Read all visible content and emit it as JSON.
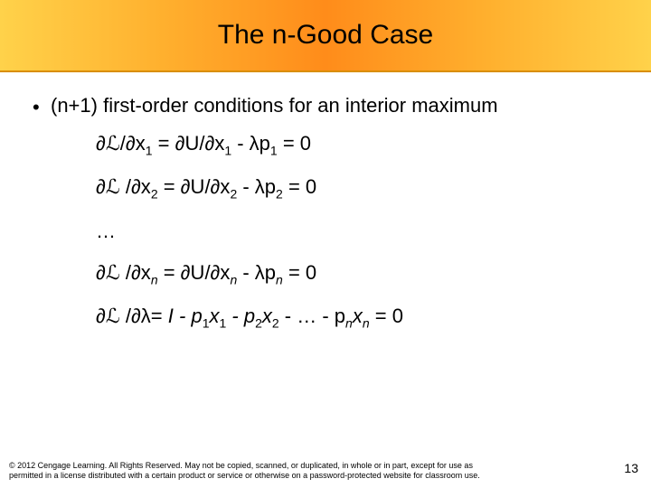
{
  "title": "The n-Good Case",
  "bullet": "(n+1) first-order conditions for an interior maximum",
  "equations": {
    "e1_lhs": "∂ℒ/∂x",
    "e1_sub": "1",
    "e1_mid": " = ∂U/∂x",
    "e1_sub2": "1",
    "e1_rhs": " - λp",
    "e1_sub3": "1",
    "e1_end": " = 0",
    "e2_lhs": "∂ℒ /∂x",
    "e2_sub": "2",
    "e2_mid": " = ∂U/∂x",
    "e2_sub2": "2",
    "e2_rhs": " - λp",
    "e2_sub3": "2",
    "e2_end": " = 0",
    "dots": "…",
    "en_lhs": "∂ℒ /∂x",
    "en_sub": "n",
    "en_mid": " = ∂U/∂x",
    "en_sub2": "n",
    "en_rhs": " - λp",
    "en_sub3": "n",
    "en_end": " = 0",
    "el_lhs": "∂ℒ /∂λ= ",
    "el_I": "I",
    "el_m1": " - p",
    "el_s1a": "1",
    "el_x1": "x",
    "el_s1b": "1",
    "el_m2": " - p",
    "el_s2a": "2",
    "el_x2": "x",
    "el_s2b": "2",
    "el_m3": " - … - p",
    "el_sna": "n",
    "el_xn": "x",
    "el_snb": "n",
    "el_end": " = 0"
  },
  "copyright_l1": "© 2012 Cengage Learning. All Rights Reserved. May not be copied, scanned, or duplicated, in whole or in part, except for use as",
  "copyright_l2": "permitted in a license distributed with a certain product or service or otherwise on a password-protected website for classroom use.",
  "page_number": "13",
  "colors": {
    "band_gradient": [
      "#ffd24a",
      "#ffb02e",
      "#ff8c1a",
      "#ffb02e",
      "#ffd24a"
    ],
    "text": "#000000",
    "background": "#ffffff"
  }
}
